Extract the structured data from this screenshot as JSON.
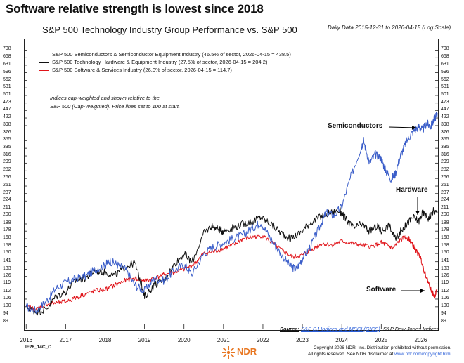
{
  "headline": "Software relative strength is lowest since 2018",
  "chart_data": {
    "type": "line",
    "title": "S&P 500 Technology Industry Group Performance vs. S&P 500",
    "subtitle": "Daily Data 2015-12-31 to 2026-04-15 (Log Scale)",
    "y_scale": "log",
    "ylim": [
      86,
      725
    ],
    "xlim": [
      2015.96,
      2026.42
    ],
    "y_ticks": [
      "708",
      "668",
      "631",
      "596",
      "562",
      "531",
      "501",
      "473",
      "447",
      "422",
      "398",
      "376",
      "355",
      "335",
      "316",
      "299",
      "282",
      "266",
      "251",
      "237",
      "224",
      "211",
      "200",
      "188",
      "178",
      "168",
      "158",
      "150",
      "141",
      "133",
      "126",
      "119",
      "112",
      "106",
      "100",
      "94",
      "89"
    ],
    "x_ticks": [
      "2016",
      "2017",
      "2018",
      "2019",
      "2020",
      "2021",
      "2022",
      "2023",
      "2024",
      "2025",
      "2026"
    ],
    "series": [
      {
        "name": "S&P 500 Semiconductors & Semiconductor Equipment Industry (46.5% of sector, 2026-04-15 = 438.5)",
        "color": "#3a5dc9",
        "points": [
          [
            2016.0,
            100
          ],
          [
            2016.25,
            97
          ],
          [
            2016.5,
            104
          ],
          [
            2016.75,
            115
          ],
          [
            2017.0,
            120
          ],
          [
            2017.25,
            124
          ],
          [
            2017.5,
            126
          ],
          [
            2017.75,
            133
          ],
          [
            2018.0,
            137
          ],
          [
            2018.1,
            142
          ],
          [
            2018.3,
            138
          ],
          [
            2018.5,
            134
          ],
          [
            2018.75,
            118
          ],
          [
            2019.0,
            113
          ],
          [
            2019.25,
            124
          ],
          [
            2019.5,
            122
          ],
          [
            2019.75,
            132
          ],
          [
            2020.0,
            138
          ],
          [
            2020.2,
            128
          ],
          [
            2020.5,
            150
          ],
          [
            2020.75,
            158
          ],
          [
            2021.0,
            163
          ],
          [
            2021.25,
            168
          ],
          [
            2021.5,
            173
          ],
          [
            2021.75,
            183
          ],
          [
            2021.95,
            190
          ],
          [
            2022.2,
            168
          ],
          [
            2022.45,
            150
          ],
          [
            2022.7,
            136
          ],
          [
            2022.85,
            133
          ],
          [
            2023.0,
            145
          ],
          [
            2023.2,
            158
          ],
          [
            2023.45,
            185
          ],
          [
            2023.6,
            205
          ],
          [
            2023.8,
            200
          ],
          [
            2024.0,
            215
          ],
          [
            2024.25,
            275
          ],
          [
            2024.5,
            340
          ],
          [
            2024.55,
            355
          ],
          [
            2024.7,
            300
          ],
          [
            2024.85,
            320
          ],
          [
            2025.0,
            310
          ],
          [
            2025.1,
            285
          ],
          [
            2025.25,
            265
          ],
          [
            2025.35,
            275
          ],
          [
            2025.5,
            320
          ],
          [
            2025.65,
            355
          ],
          [
            2025.8,
            380
          ],
          [
            2025.95,
            395
          ],
          [
            2026.05,
            385
          ],
          [
            2026.15,
            405
          ],
          [
            2026.25,
            395
          ],
          [
            2026.35,
            420
          ],
          [
            2026.42,
            438.5
          ]
        ]
      },
      {
        "name": "S&P 500 Technology Hardware & Equipment Industry (27.5% of sector, 2026-04-15 = 204.2)",
        "color": "#111111",
        "points": [
          [
            2016.0,
            100
          ],
          [
            2016.25,
            96
          ],
          [
            2016.5,
            98
          ],
          [
            2016.75,
            108
          ],
          [
            2017.0,
            112
          ],
          [
            2017.25,
            122
          ],
          [
            2017.5,
            124
          ],
          [
            2017.75,
            132
          ],
          [
            2018.0,
            130
          ],
          [
            2018.25,
            127
          ],
          [
            2018.5,
            135
          ],
          [
            2018.75,
            140
          ],
          [
            2018.95,
            115
          ],
          [
            2019.0,
            108
          ],
          [
            2019.25,
            118
          ],
          [
            2019.5,
            123
          ],
          [
            2019.75,
            138
          ],
          [
            2020.0,
            150
          ],
          [
            2020.2,
            140
          ],
          [
            2020.5,
            175
          ],
          [
            2020.7,
            185
          ],
          [
            2020.9,
            180
          ],
          [
            2021.0,
            178
          ],
          [
            2021.25,
            183
          ],
          [
            2021.5,
            188
          ],
          [
            2021.75,
            192
          ],
          [
            2021.95,
            198
          ],
          [
            2022.2,
            188
          ],
          [
            2022.45,
            176
          ],
          [
            2022.7,
            168
          ],
          [
            2022.95,
            176
          ],
          [
            2023.2,
            190
          ],
          [
            2023.45,
            198
          ],
          [
            2023.7,
            205
          ],
          [
            2023.95,
            208
          ],
          [
            2024.1,
            195
          ],
          [
            2024.3,
            182
          ],
          [
            2024.5,
            188
          ],
          [
            2024.7,
            178
          ],
          [
            2024.9,
            185
          ],
          [
            2025.0,
            178
          ],
          [
            2025.2,
            186
          ],
          [
            2025.35,
            168
          ],
          [
            2025.5,
            178
          ],
          [
            2025.65,
            188
          ],
          [
            2025.8,
            198
          ],
          [
            2025.95,
            192
          ],
          [
            2026.05,
            205
          ],
          [
            2026.2,
            196
          ],
          [
            2026.32,
            208
          ],
          [
            2026.42,
            204.2
          ]
        ]
      },
      {
        "name": "S&P 500 Software & Services Industry (26.0% of sector, 2026-04-15 = 114.7)",
        "color": "#e0141a",
        "points": [
          [
            2016.0,
            100
          ],
          [
            2016.25,
            98
          ],
          [
            2016.5,
            102
          ],
          [
            2016.75,
            103
          ],
          [
            2017.0,
            104
          ],
          [
            2017.25,
            107
          ],
          [
            2017.5,
            110
          ],
          [
            2017.75,
            113
          ],
          [
            2018.0,
            114
          ],
          [
            2018.25,
            118
          ],
          [
            2018.5,
            122
          ],
          [
            2018.75,
            124
          ],
          [
            2019.0,
            122
          ],
          [
            2019.25,
            124
          ],
          [
            2019.5,
            128
          ],
          [
            2019.75,
            130
          ],
          [
            2020.0,
            133
          ],
          [
            2020.25,
            138
          ],
          [
            2020.5,
            150
          ],
          [
            2020.75,
            152
          ],
          [
            2021.0,
            156
          ],
          [
            2021.25,
            160
          ],
          [
            2021.5,
            168
          ],
          [
            2021.75,
            170
          ],
          [
            2022.0,
            172
          ],
          [
            2022.25,
            162
          ],
          [
            2022.5,
            153
          ],
          [
            2022.75,
            146
          ],
          [
            2023.0,
            148
          ],
          [
            2023.25,
            155
          ],
          [
            2023.5,
            162
          ],
          [
            2023.75,
            160
          ],
          [
            2024.0,
            165
          ],
          [
            2024.25,
            162
          ],
          [
            2024.5,
            160
          ],
          [
            2024.75,
            158
          ],
          [
            2025.0,
            163
          ],
          [
            2025.15,
            160
          ],
          [
            2025.3,
            156
          ],
          [
            2025.45,
            165
          ],
          [
            2025.6,
            170
          ],
          [
            2025.7,
            168
          ],
          [
            2025.8,
            160
          ],
          [
            2025.9,
            152
          ],
          [
            2026.0,
            145
          ],
          [
            2026.08,
            132
          ],
          [
            2026.18,
            122
          ],
          [
            2026.28,
            112
          ],
          [
            2026.35,
            108
          ],
          [
            2026.42,
            114.7
          ]
        ]
      }
    ],
    "annotations": [
      "Semiconductors",
      "Hardware",
      "Software"
    ]
  },
  "note_lines": [
    "Indices cap-weighted and shown relative to the",
    "S&P 500 (Cap-Weighted). Price lines set to 100 at start."
  ],
  "source": {
    "label": "Source:",
    "link_text": "S&P DJ Indices and MSCI (GICS)",
    "suffix": ", S&P Dow Jones Indices"
  },
  "footer": {
    "code": "IF26_14C_C",
    "logo_text": "NDR",
    "copyright_line1": "Copyright 2026 NDR, Inc. Distribution prohibited without permission.",
    "copyright_line2_prefix": "All rights reserved. See NDR disclaimer at ",
    "copyright_link": "www.ndr.com/copyright.html"
  }
}
